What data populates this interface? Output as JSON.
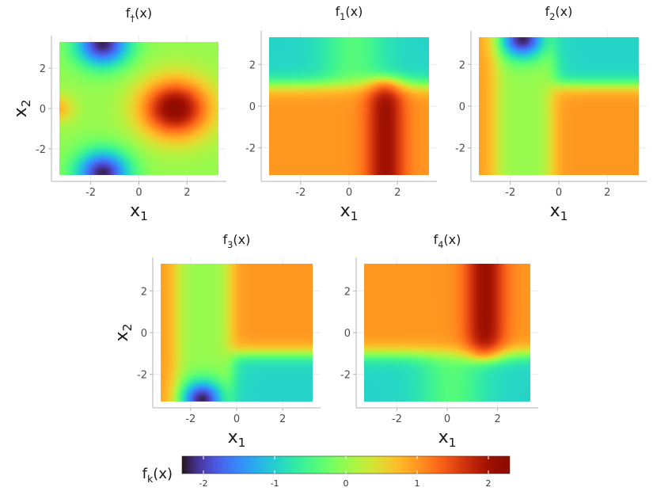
{
  "chart_data": [
    {
      "type": "heatmap",
      "id": "f_dagger",
      "title": "f",
      "title_sub": "†",
      "title_suffix": "(x)",
      "xlabel": "x",
      "xlabel_sub": "1",
      "ylabel": "x",
      "ylabel_sub": "2",
      "xlim": [
        -3.3,
        3.3
      ],
      "ylim": [
        -3.3,
        3.3
      ],
      "xticks": [
        -2,
        0,
        2
      ],
      "yticks": [
        -2,
        0,
        2
      ],
      "xtick_labels": [
        "-2",
        "0",
        "2"
      ],
      "ytick_labels": [
        "-2",
        "0",
        "2"
      ],
      "function": "f1 + f2 + f3 + f4"
    },
    {
      "type": "heatmap",
      "id": "f1",
      "title": "f",
      "title_sub": "1",
      "title_suffix": "(x)",
      "xlabel": "x",
      "xlabel_sub": "1",
      "ylabel": "",
      "ylabel_sub": "",
      "xlim": [
        -3.3,
        3.3
      ],
      "ylim": [
        -3.3,
        3.3
      ],
      "xticks": [
        -2,
        0,
        2
      ],
      "yticks": [
        -2,
        0,
        2
      ],
      "xtick_labels": [
        "-2",
        "0",
        "2"
      ],
      "ytick_labels": [
        "-2",
        "0",
        "2"
      ],
      "function": "high bump at x1 = 1.5 extending for x2 < 1, negative band for x2 > 1"
    },
    {
      "type": "heatmap",
      "id": "f2",
      "title": "f",
      "title_sub": "2",
      "title_suffix": "(x)",
      "xlabel": "x",
      "xlabel_sub": "1",
      "ylabel": "",
      "ylabel_sub": "",
      "xlim": [
        -3.3,
        3.3
      ],
      "ylim": [
        -3.3,
        3.3
      ],
      "xticks": [
        -2,
        0,
        2
      ],
      "yticks": [
        -2,
        0,
        2
      ],
      "xtick_labels": [
        "-2",
        "0",
        "2"
      ],
      "ytick_labels": [
        "-2",
        "0",
        "2"
      ],
      "function": "low bump at (-1.5, 3), green column near x1 = -1.5"
    },
    {
      "type": "heatmap",
      "id": "f3",
      "title": "f",
      "title_sub": "3",
      "title_suffix": "(x)",
      "xlabel": "x",
      "xlabel_sub": "1",
      "ylabel": "x",
      "ylabel_sub": "2",
      "xlim": [
        -3.3,
        3.3
      ],
      "ylim": [
        -3.3,
        3.3
      ],
      "xticks": [
        -2,
        0,
        2
      ],
      "yticks": [
        -2,
        0,
        2
      ],
      "xtick_labels": [
        "-2",
        "0",
        "2"
      ],
      "ytick_labels": [
        "-2",
        "0",
        "2"
      ],
      "function": "low bump at (-1.5, -3), green column near x1 = -1.5"
    },
    {
      "type": "heatmap",
      "id": "f4",
      "title": "f",
      "title_sub": "4",
      "title_suffix": "(x)",
      "xlabel": "x",
      "xlabel_sub": "1",
      "ylabel": "",
      "ylabel_sub": "",
      "xlim": [
        -3.3,
        3.3
      ],
      "ylim": [
        -3.3,
        3.3
      ],
      "xticks": [
        -2,
        0,
        2
      ],
      "yticks": [
        -2,
        0,
        2
      ],
      "xtick_labels": [
        "-2",
        "0",
        "2"
      ],
      "ytick_labels": [
        "-2",
        "0",
        "2"
      ],
      "function": "high bump at x1 = 1.5 extending for x2 > -1, negative band for x2 < -1"
    }
  ],
  "legend": {
    "title": "f",
    "title_sub": "k",
    "title_suffix": "(x)",
    "range": [
      -2.3,
      2.3
    ],
    "ticks": [
      -2,
      -1,
      0,
      1,
      2
    ],
    "tick_labels": [
      "-2",
      "-1",
      "0",
      "1",
      "2"
    ],
    "placement": "bottom",
    "colormap": "turbo"
  },
  "colors": {
    "low": "#30123b",
    "mid": "#a4fc3c",
    "high": "#7a0403"
  }
}
